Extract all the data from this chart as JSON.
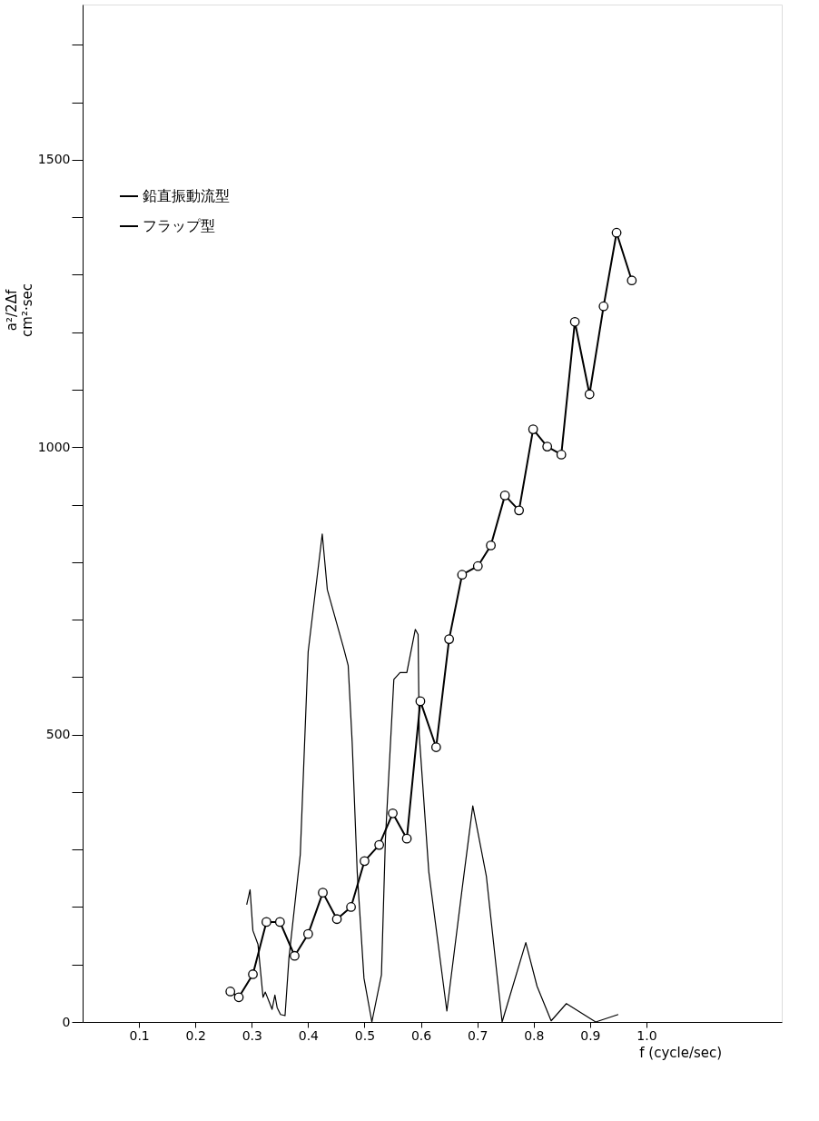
{
  "chart_data": {
    "type": "line",
    "xlabel": "f (cycle/sec)",
    "ylabel": "a²/2Δf\ncm²·sec",
    "xlim": [
      0,
      1.24
    ],
    "ylim": [
      0,
      1770
    ],
    "xticks": [
      0.1,
      0.2,
      0.3,
      0.4,
      0.5,
      0.6,
      0.7,
      0.8,
      0.9,
      {
        "value": 1.0,
        "label": "1.0"
      }
    ],
    "yticks": [
      0,
      {
        "value": 100,
        "label": null
      },
      {
        "value": 200,
        "label": null
      },
      {
        "value": 300,
        "label": null
      },
      {
        "value": 400,
        "label": null
      },
      500,
      {
        "value": 600,
        "label": null
      },
      {
        "value": 700,
        "label": null
      },
      {
        "value": 800,
        "label": null
      },
      {
        "value": 900,
        "label": null
      },
      1000,
      {
        "value": 1100,
        "label": null
      },
      {
        "value": 1200,
        "label": null
      },
      {
        "value": 1300,
        "label": null
      },
      {
        "value": 1400,
        "label": null
      },
      1500,
      {
        "value": 1600,
        "label": null
      },
      {
        "value": 1700,
        "label": null
      }
    ],
    "grid": false,
    "legend": "top left",
    "series": [
      {
        "name": "鉛直振動流型",
        "color": "#000000",
        "marker": "none",
        "x": [
          0.291,
          0.297,
          0.302,
          0.311,
          0.32,
          0.324,
          0.33,
          0.336,
          0.341,
          0.345,
          0.351,
          0.359,
          0.366,
          0.386,
          0.4,
          0.425,
          0.434,
          0.463,
          0.471,
          0.478,
          0.487,
          0.499,
          0.513,
          0.53,
          0.537,
          0.552,
          0.563,
          0.575,
          0.59,
          0.595,
          0.597,
          0.614,
          0.646,
          0.673,
          0.692,
          0.716,
          0.744,
          0.786,
          0.806,
          0.831,
          0.858,
          0.91,
          0.95
        ],
        "values": [
          204,
          230,
          159,
          135,
          43,
          52,
          37,
          22,
          47,
          25,
          13,
          11,
          112,
          291,
          644,
          849,
          752,
          650,
          620,
          488,
          261,
          76,
          0,
          82,
          318,
          596,
          608,
          608,
          683,
          674,
          500,
          261,
          19,
          231,
          376,
          254,
          0,
          138,
          62,
          2,
          32,
          0,
          13
        ]
      },
      {
        "name": "フラップ型",
        "color": "#000000",
        "marker": "circle",
        "x": [
          0.262,
          0.277,
          0.302,
          0.326,
          0.35,
          0.376,
          0.4,
          0.426,
          0.451,
          0.476,
          0.5,
          0.526,
          0.55,
          0.575,
          0.599,
          0.627,
          0.65,
          0.673,
          0.701,
          0.724,
          0.749,
          0.774,
          0.799,
          0.824,
          0.849,
          0.873,
          0.899,
          0.924,
          0.947,
          0.974
        ],
        "values": [
          53,
          43,
          83,
          174,
          174,
          115,
          153,
          225,
          179,
          200,
          280,
          308,
          363,
          319,
          558,
          478,
          666,
          778,
          793,
          829,
          916,
          890,
          1031,
          1001,
          987,
          1218,
          1092,
          1245,
          1373,
          1290
        ]
      }
    ]
  }
}
